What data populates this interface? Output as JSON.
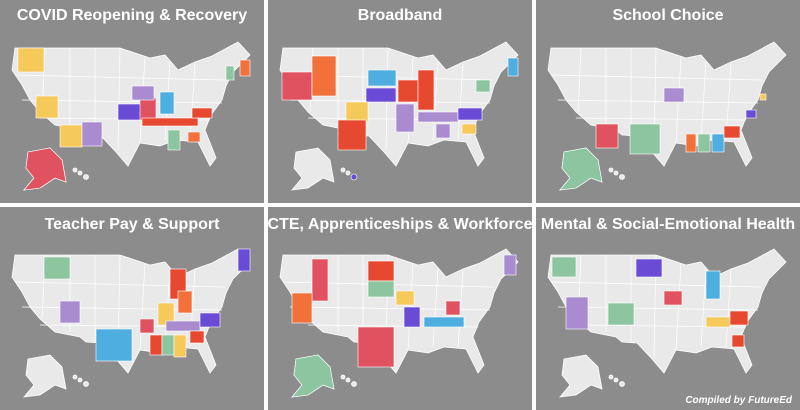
{
  "panels": [
    {
      "title": "COVID Reopening & Recovery"
    },
    {
      "title": "Broadband"
    },
    {
      "title": "School Choice"
    },
    {
      "title": "Teacher Pay & Support"
    },
    {
      "title": "CTE, Apprenticeships & Workforce"
    },
    {
      "title": "Mental & Social-Emotional Health"
    }
  ],
  "credit": "Compiled by FutureEd"
}
